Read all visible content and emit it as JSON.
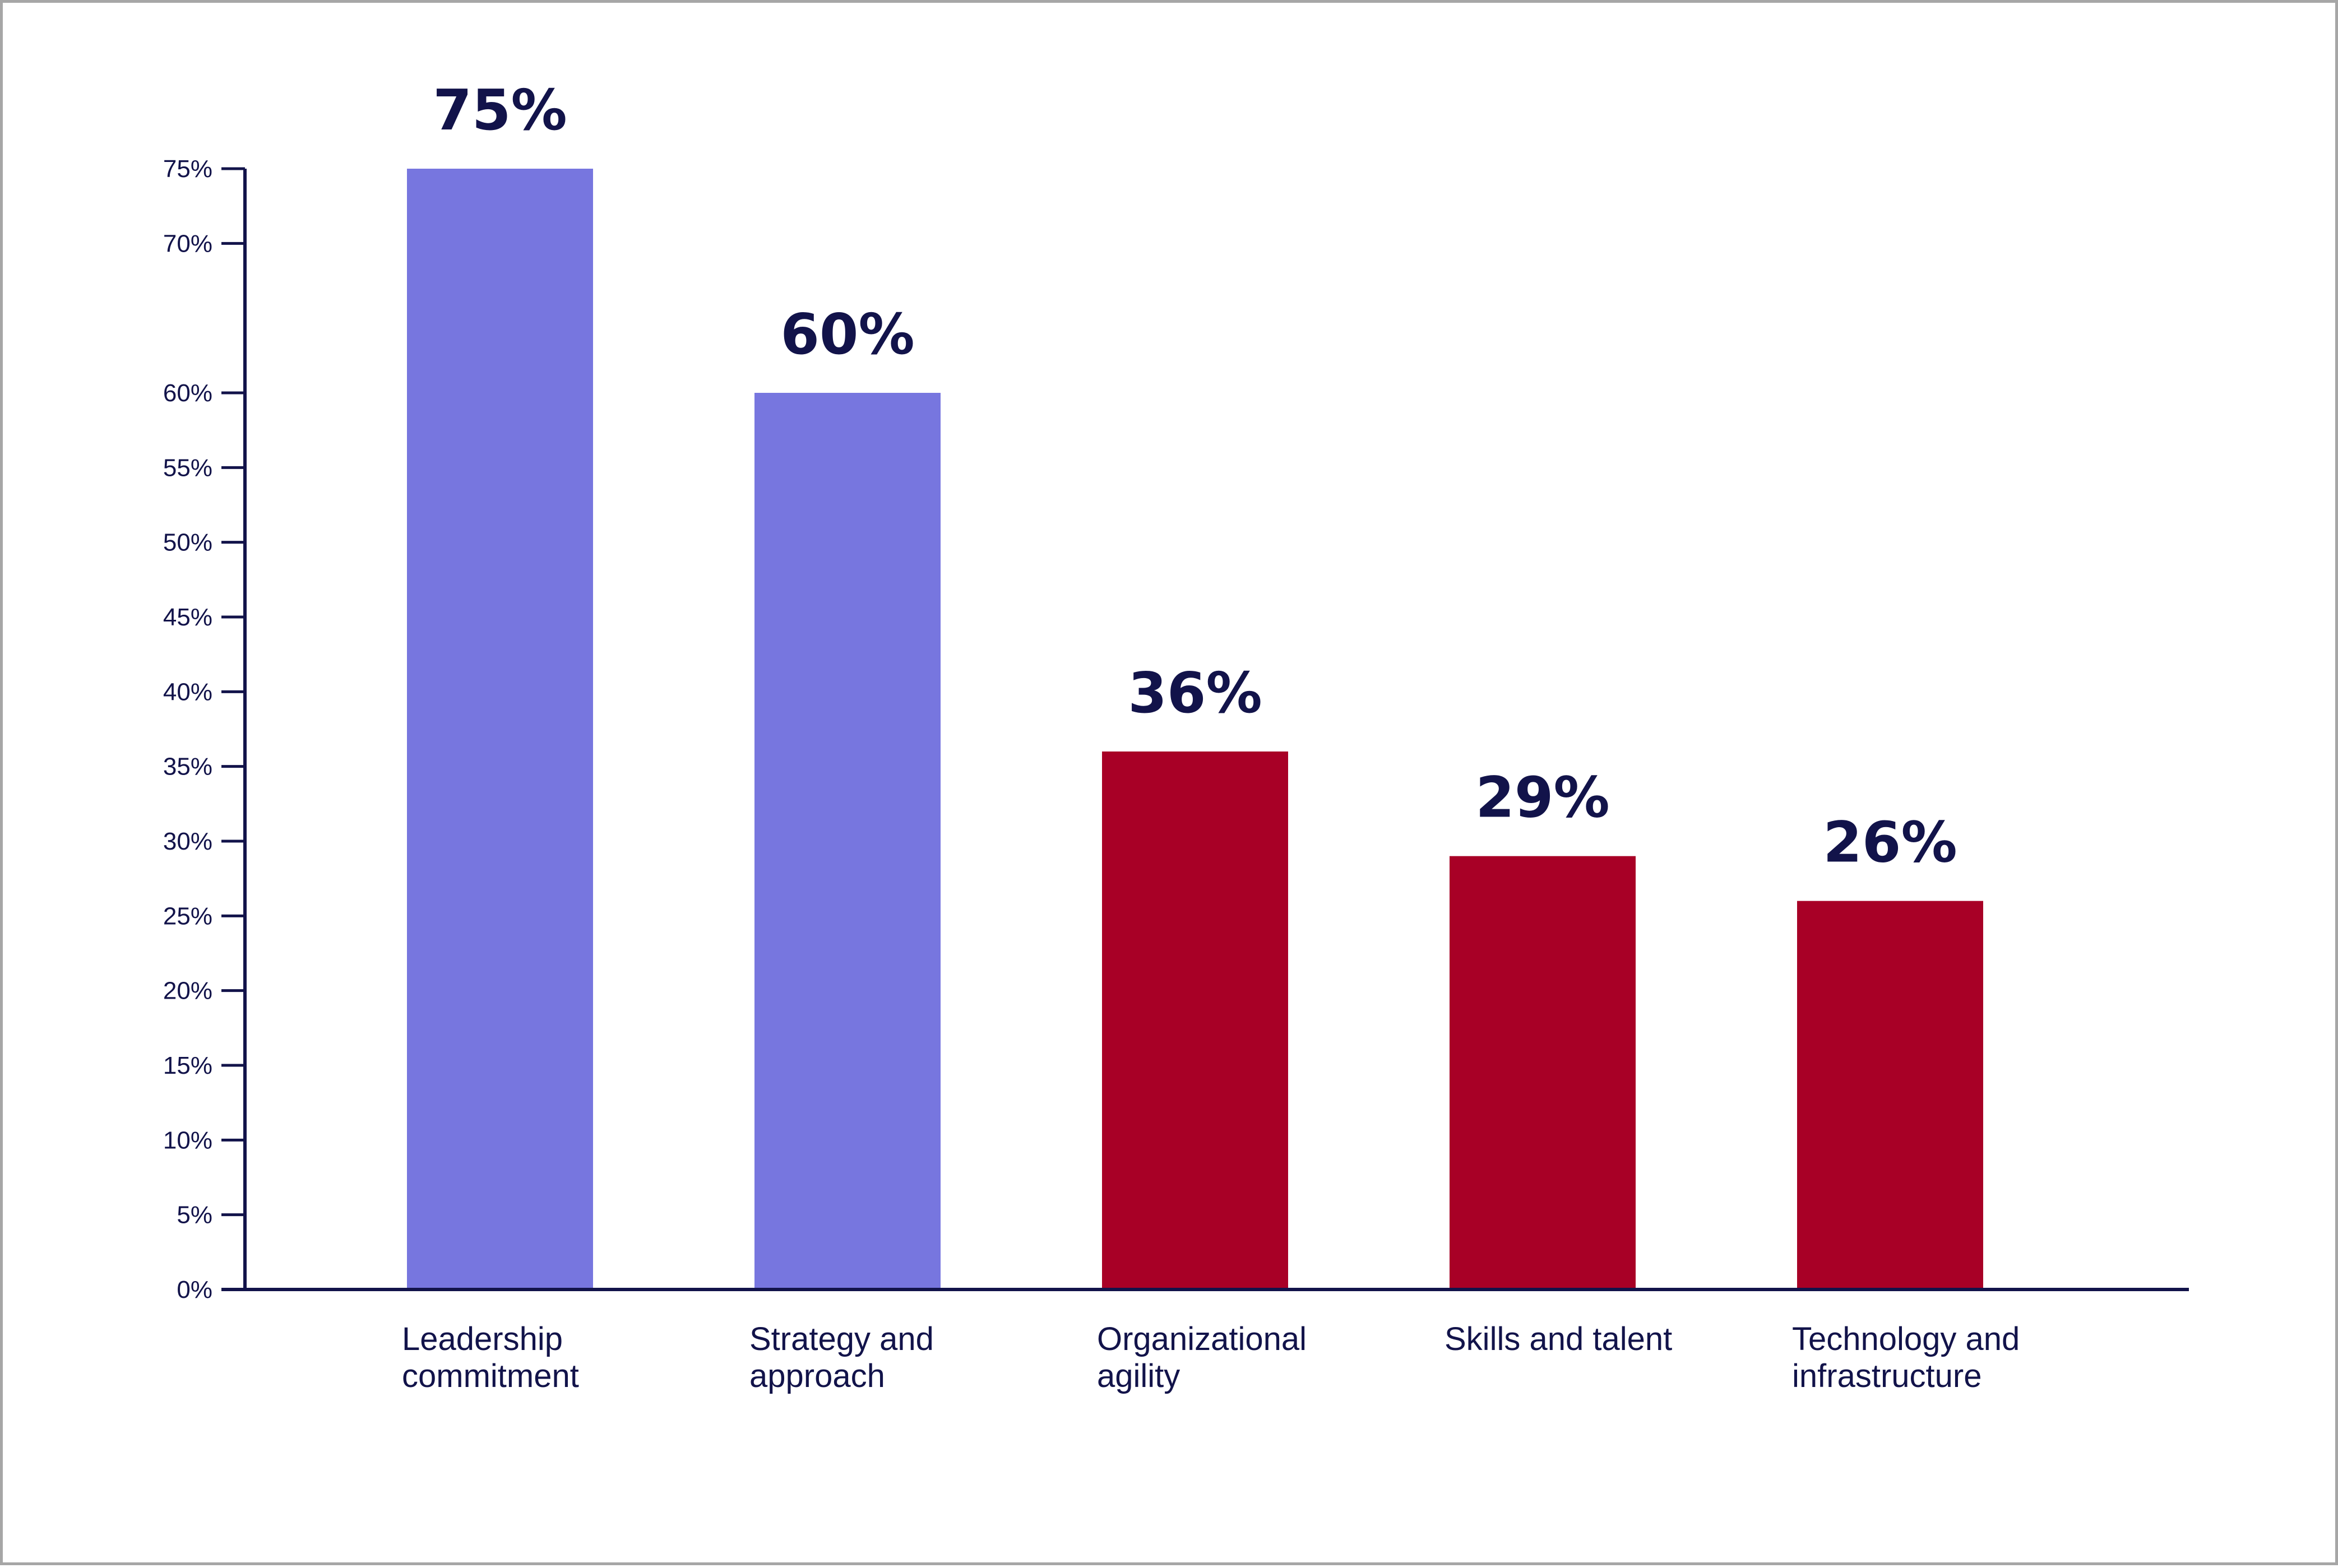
{
  "chart_data": {
    "type": "bar",
    "categories": [
      [
        "Leadership",
        "commitment"
      ],
      [
        "Strategy and",
        "approach"
      ],
      [
        "Organizational",
        "agility"
      ],
      [
        "Skills and talent"
      ],
      [
        "Technology and",
        "infrastructure"
      ]
    ],
    "values": [
      75,
      60,
      36,
      29,
      26
    ],
    "data_labels": [
      "75%",
      "60%",
      "36%",
      "29%",
      "26%"
    ],
    "bar_colors": [
      "#7776df",
      "#7776df",
      "#a80026",
      "#a80026",
      "#a80026"
    ],
    "y_ticks": [
      {
        "value": 0,
        "label": "0%"
      },
      {
        "value": 5,
        "label": "5%"
      },
      {
        "value": 10,
        "label": "10%"
      },
      {
        "value": 15,
        "label": "15%"
      },
      {
        "value": 20,
        "label": "20%"
      },
      {
        "value": 25,
        "label": "25%"
      },
      {
        "value": 30,
        "label": "30%"
      },
      {
        "value": 35,
        "label": "35%"
      },
      {
        "value": 40,
        "label": "40%"
      },
      {
        "value": 45,
        "label": "45%"
      },
      {
        "value": 50,
        "label": "50%"
      },
      {
        "value": 55,
        "label": "55%"
      },
      {
        "value": 60,
        "label": "60%"
      },
      {
        "value": 70,
        "label": "70%"
      },
      {
        "value": 75,
        "label": "75%"
      }
    ],
    "ylim": [
      0,
      75
    ],
    "title": "",
    "xlabel": "",
    "ylabel": "",
    "grid": false,
    "axis_color": "#12134a",
    "text_color": "#12134a",
    "border_color": "#a6a6a6"
  }
}
